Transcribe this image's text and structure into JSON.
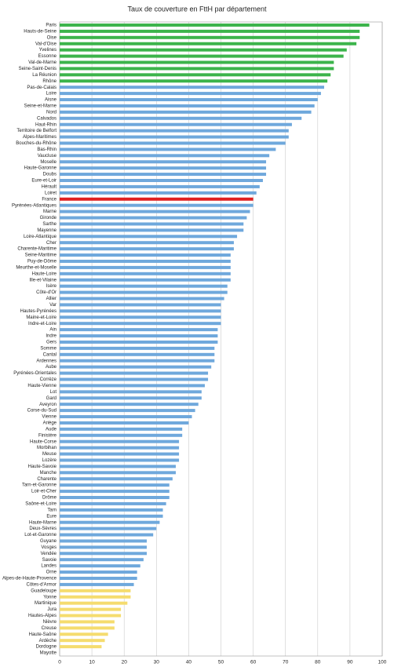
{
  "chart_data": {
    "type": "hbar",
    "title": "Taux de couverture en FttH par département",
    "categories": [
      "Paris",
      "Hauts-de-Seine",
      "Oise",
      "Val-d'Oise",
      "Yvelines",
      "Essonne",
      "Val-de-Marne",
      "Seine-Saint-Denis",
      "La Réunion",
      "Rhône",
      "Pas-de-Calais",
      "Loire",
      "Aisne",
      "Seine-et-Marne",
      "Nord",
      "Calvados",
      "Haut-Rhin",
      "Territoire de Belfort",
      "Alpes-Maritimes",
      "Bouches-du-Rhône",
      "Bas-Rhin",
      "Vaucluse",
      "Moselle",
      "Haute-Garonne",
      "Doubs",
      "Eure-et-Loir",
      "Hérault",
      "Loiret",
      "France",
      "Pyrénées-Atlantiques",
      "Marne",
      "Gironde",
      "Sarthe",
      "Mayenne",
      "Loire-Atlantique",
      "Cher",
      "Charente-Maritime",
      "Seine-Maritime",
      "Puy-de-Dôme",
      "Meurthe-et-Moselle",
      "Haute-Loire",
      "Ille-et-Vilaine",
      "Isère",
      "Côte-d'Or",
      "Allier",
      "Var",
      "Hautes-Pyrénées",
      "Maine-et-Loire",
      "Indre-et-Loire",
      "Ain",
      "Indre",
      "Gers",
      "Somme",
      "Cantal",
      "Ardennes",
      "Aube",
      "Pyrénées-Orientales",
      "Corrèze",
      "Haute-Vienne",
      "Lot",
      "Gard",
      "Aveyron",
      "Corse-du-Sud",
      "Vienne",
      "Ariège",
      "Aude",
      "Finistère",
      "Haute-Corse",
      "Morbihan",
      "Meuse",
      "Lozère",
      "Haute-Savoie",
      "Manche",
      "Charente",
      "Tarn-et-Garonne",
      "Loir-et-Cher",
      "Drôme",
      "Saône-et-Loire",
      "Tarn",
      "Eure",
      "Haute-Marne",
      "Deux-Sèvres",
      "Lot-et-Garonne",
      "Guyane",
      "Vosges",
      "Vendée",
      "Savoie",
      "Landes",
      "Orne",
      "Alpes-de-Haute-Provence",
      "Côtes-d'Armor",
      "Guadeloupe",
      "Yonne",
      "Martinique",
      "Jura",
      "Hautes-Alpes",
      "Nièvre",
      "Creuse",
      "Haute-Saône",
      "Ardèche",
      "Dordogne",
      "Mayotte"
    ],
    "values": [
      96,
      93,
      93,
      92,
      89,
      88,
      85,
      85,
      84,
      83,
      82,
      81,
      80,
      79,
      78,
      75,
      72,
      71,
      71,
      70,
      67,
      65,
      64,
      64,
      64,
      63,
      62,
      61,
      60,
      60,
      59,
      58,
      57,
      57,
      55,
      54,
      54,
      53,
      53,
      53,
      53,
      53,
      52,
      52,
      51,
      50,
      50,
      50,
      50,
      49,
      49,
      49,
      48,
      48,
      48,
      47,
      46,
      46,
      45,
      44,
      44,
      43,
      42,
      41,
      40,
      38,
      38,
      37,
      37,
      37,
      37,
      36,
      36,
      35,
      34,
      34,
      34,
      33,
      32,
      32,
      31,
      30,
      29,
      27,
      27,
      27,
      26,
      25,
      24,
      24,
      23,
      22,
      22,
      21,
      19,
      19,
      17,
      17,
      15,
      14,
      13,
      0
    ],
    "colors": [
      "#3cb44b",
      "#3cb44b",
      "#3cb44b",
      "#3cb44b",
      "#3cb44b",
      "#3cb44b",
      "#3cb44b",
      "#3cb44b",
      "#3cb44b",
      "#3cb44b",
      "#6fa8dc",
      "#6fa8dc",
      "#6fa8dc",
      "#6fa8dc",
      "#6fa8dc",
      "#6fa8dc",
      "#6fa8dc",
      "#6fa8dc",
      "#6fa8dc",
      "#6fa8dc",
      "#6fa8dc",
      "#6fa8dc",
      "#6fa8dc",
      "#6fa8dc",
      "#6fa8dc",
      "#6fa8dc",
      "#6fa8dc",
      "#6fa8dc",
      "#e02020",
      "#6fa8dc",
      "#6fa8dc",
      "#6fa8dc",
      "#6fa8dc",
      "#6fa8dc",
      "#6fa8dc",
      "#6fa8dc",
      "#6fa8dc",
      "#6fa8dc",
      "#6fa8dc",
      "#6fa8dc",
      "#6fa8dc",
      "#6fa8dc",
      "#6fa8dc",
      "#6fa8dc",
      "#6fa8dc",
      "#6fa8dc",
      "#6fa8dc",
      "#6fa8dc",
      "#6fa8dc",
      "#6fa8dc",
      "#6fa8dc",
      "#6fa8dc",
      "#6fa8dc",
      "#6fa8dc",
      "#6fa8dc",
      "#6fa8dc",
      "#6fa8dc",
      "#6fa8dc",
      "#6fa8dc",
      "#6fa8dc",
      "#6fa8dc",
      "#6fa8dc",
      "#6fa8dc",
      "#6fa8dc",
      "#6fa8dc",
      "#6fa8dc",
      "#6fa8dc",
      "#6fa8dc",
      "#6fa8dc",
      "#6fa8dc",
      "#6fa8dc",
      "#6fa8dc",
      "#6fa8dc",
      "#6fa8dc",
      "#6fa8dc",
      "#6fa8dc",
      "#6fa8dc",
      "#6fa8dc",
      "#6fa8dc",
      "#6fa8dc",
      "#6fa8dc",
      "#6fa8dc",
      "#6fa8dc",
      "#6fa8dc",
      "#6fa8dc",
      "#6fa8dc",
      "#6fa8dc",
      "#6fa8dc",
      "#6fa8dc",
      "#6fa8dc",
      "#6fa8dc",
      "#f5dc6e",
      "#f5dc6e",
      "#f5dc6e",
      "#f5dc6e",
      "#f5dc6e",
      "#f5dc6e",
      "#f5dc6e",
      "#f5dc6e",
      "#f5dc6e",
      "#f5dc6e",
      "#f5dc6e"
    ],
    "xlim": [
      0,
      100
    ],
    "xticks": [
      0,
      10,
      20,
      30,
      40,
      50,
      60,
      70,
      80,
      90,
      100
    ],
    "grid": true
  }
}
